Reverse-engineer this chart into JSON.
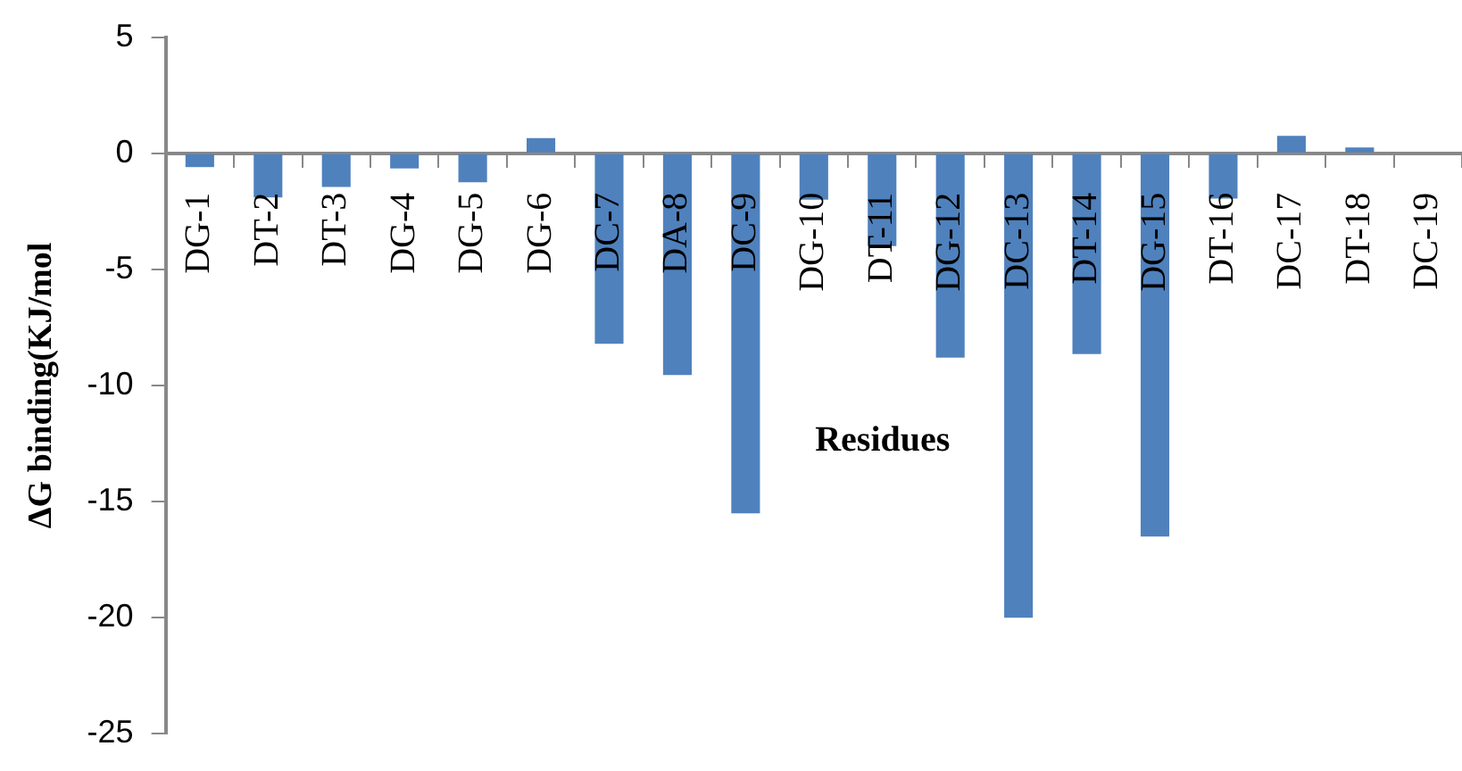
{
  "chart_data": {
    "type": "bar",
    "xlabel": "Residues",
    "ylabel": "ΔG binding(KJ/mol",
    "categories": [
      "DG-1",
      "DT-2",
      "DT-3",
      "DG-4",
      "DG-5",
      "DG-6",
      "DC-7",
      "DA-8",
      "DC-9",
      "DG-10",
      "DT-11",
      "DG-12",
      "DC-13",
      "DT-14",
      "DG-15",
      "DT-16",
      "DC-17",
      "DT-18",
      "DC-19"
    ],
    "values": [
      -0.6,
      -1.9,
      -1.45,
      -0.65,
      -1.25,
      0.65,
      -8.2,
      -9.55,
      -15.5,
      -2.0,
      -4.0,
      -8.8,
      -20,
      -8.65,
      -16.5,
      -1.95,
      0.75,
      0.25,
      0
    ],
    "color": "#4f81bd",
    "ylim": [
      -25,
      5
    ],
    "yticks": [
      -25,
      -20,
      -15,
      -10,
      -5,
      0,
      5
    ],
    "grid": false,
    "legend": false
  }
}
